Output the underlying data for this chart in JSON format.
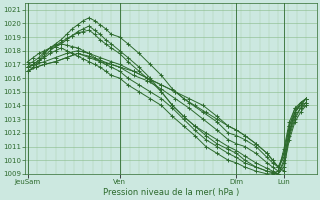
{
  "xlabel": "Pression niveau de la mer( hPa )",
  "bg_color": "#cce8e0",
  "plot_bg_color": "#cce8e0",
  "line_color": "#2d6a2d",
  "grid_major_color": "#88bb88",
  "grid_minor_color": "#aaccaa",
  "ylim": [
    1009,
    1021.5
  ],
  "yticks": [
    1009,
    1010,
    1011,
    1012,
    1013,
    1014,
    1015,
    1016,
    1017,
    1018,
    1019,
    1020,
    1021
  ],
  "xtick_labels": [
    "JeuSam",
    "Ven",
    "Dim",
    "Lun"
  ],
  "xtick_positions": [
    0.0,
    0.33,
    0.75,
    0.92
  ],
  "series": [
    {
      "x": [
        0.0,
        0.02,
        0.04,
        0.06,
        0.08,
        0.1,
        0.12,
        0.14,
        0.16,
        0.18,
        0.2,
        0.22,
        0.24,
        0.26,
        0.28,
        0.3,
        0.33,
        0.36,
        0.4,
        0.44,
        0.48,
        0.52,
        0.56,
        0.6,
        0.64,
        0.68,
        0.72,
        0.75,
        0.78,
        0.82,
        0.86,
        0.88,
        0.9,
        0.92,
        0.94,
        0.96,
        0.98,
        1.0
      ],
      "y": [
        1016.8,
        1017.0,
        1017.3,
        1017.8,
        1018.2,
        1018.5,
        1018.8,
        1019.2,
        1019.6,
        1019.9,
        1020.2,
        1020.4,
        1020.2,
        1019.9,
        1019.6,
        1019.2,
        1019.0,
        1018.5,
        1017.8,
        1017.0,
        1016.2,
        1015.2,
        1014.5,
        1014.0,
        1013.5,
        1013.0,
        1012.5,
        1012.2,
        1011.8,
        1011.2,
        1010.5,
        1010.0,
        1009.5,
        1009.2,
        1012.0,
        1013.5,
        1014.2,
        1014.5
      ]
    },
    {
      "x": [
        0.0,
        0.02,
        0.04,
        0.06,
        0.08,
        0.1,
        0.12,
        0.14,
        0.16,
        0.18,
        0.2,
        0.22,
        0.24,
        0.26,
        0.28,
        0.3,
        0.33,
        0.36,
        0.4,
        0.44,
        0.48,
        0.52,
        0.56,
        0.6,
        0.64,
        0.68,
        0.72,
        0.75,
        0.78,
        0.82,
        0.86,
        0.88,
        0.9,
        0.92,
        0.94,
        0.96,
        0.98,
        1.0
      ],
      "y": [
        1016.5,
        1016.8,
        1017.2,
        1017.6,
        1018.0,
        1018.3,
        1018.5,
        1018.8,
        1019.1,
        1019.4,
        1019.6,
        1019.8,
        1019.5,
        1019.2,
        1018.8,
        1018.5,
        1018.0,
        1017.5,
        1016.8,
        1016.0,
        1015.0,
        1014.0,
        1013.2,
        1012.5,
        1012.0,
        1011.5,
        1011.0,
        1010.7,
        1010.3,
        1009.8,
        1009.4,
        1009.2,
        1009.0,
        1009.5,
        1011.5,
        1012.8,
        1013.5,
        1014.0
      ]
    },
    {
      "x": [
        0.0,
        0.02,
        0.04,
        0.06,
        0.08,
        0.1,
        0.12,
        0.14,
        0.16,
        0.18,
        0.2,
        0.22,
        0.24,
        0.26,
        0.28,
        0.3,
        0.33,
        0.36,
        0.4,
        0.44,
        0.48,
        0.52,
        0.56,
        0.6,
        0.64,
        0.68,
        0.72,
        0.75,
        0.78,
        0.82,
        0.86,
        0.88,
        0.9,
        0.92,
        0.94,
        0.96,
        0.98,
        1.0
      ],
      "y": [
        1017.0,
        1017.2,
        1017.5,
        1017.9,
        1018.2,
        1018.4,
        1018.6,
        1018.9,
        1019.1,
        1019.3,
        1019.4,
        1019.5,
        1019.2,
        1018.8,
        1018.5,
        1018.2,
        1017.8,
        1017.2,
        1016.5,
        1015.8,
        1015.0,
        1014.0,
        1013.2,
        1012.5,
        1011.8,
        1011.2,
        1010.8,
        1010.5,
        1010.0,
        1009.5,
        1009.2,
        1009.1,
        1009.0,
        1009.8,
        1011.8,
        1013.0,
        1013.8,
        1014.2
      ]
    },
    {
      "x": [
        0.0,
        0.02,
        0.04,
        0.06,
        0.08,
        0.1,
        0.12,
        0.14,
        0.16,
        0.18,
        0.2,
        0.22,
        0.24,
        0.26,
        0.28,
        0.3,
        0.33,
        0.36,
        0.4,
        0.44,
        0.48,
        0.52,
        0.56,
        0.6,
        0.64,
        0.68,
        0.72,
        0.75,
        0.78,
        0.82,
        0.86,
        0.88,
        0.9,
        0.92,
        0.94,
        0.96,
        0.98,
        1.0
      ],
      "y": [
        1017.2,
        1017.5,
        1017.8,
        1018.0,
        1018.2,
        1018.3,
        1018.5,
        1018.4,
        1018.3,
        1018.2,
        1018.0,
        1017.8,
        1017.5,
        1017.2,
        1017.0,
        1016.8,
        1016.5,
        1016.0,
        1015.5,
        1015.0,
        1014.5,
        1013.8,
        1013.0,
        1012.2,
        1011.5,
        1011.0,
        1010.5,
        1010.2,
        1009.8,
        1009.5,
        1009.2,
        1009.1,
        1009.0,
        1010.0,
        1012.2,
        1013.5,
        1014.0,
        1014.5
      ]
    },
    {
      "x": [
        0.0,
        0.02,
        0.04,
        0.06,
        0.08,
        0.1,
        0.12,
        0.14,
        0.16,
        0.18,
        0.2,
        0.22,
        0.24,
        0.26,
        0.28,
        0.3,
        0.33,
        0.36,
        0.4,
        0.44,
        0.48,
        0.52,
        0.56,
        0.6,
        0.64,
        0.68,
        0.72,
        0.75,
        0.78,
        0.82,
        0.86,
        0.88,
        0.9,
        0.92,
        0.94,
        0.96,
        0.98,
        1.0
      ],
      "y": [
        1016.8,
        1017.0,
        1017.3,
        1017.5,
        1017.8,
        1018.0,
        1018.2,
        1018.0,
        1017.8,
        1017.6,
        1017.4,
        1017.2,
        1017.0,
        1016.8,
        1016.5,
        1016.2,
        1016.0,
        1015.5,
        1015.0,
        1014.5,
        1014.0,
        1013.2,
        1012.5,
        1011.8,
        1011.0,
        1010.5,
        1010.0,
        1009.8,
        1009.5,
        1009.2,
        1009.0,
        1009.0,
        1009.2,
        1010.5,
        1012.5,
        1013.8,
        1014.0,
        1014.2
      ]
    },
    {
      "x": [
        0.0,
        0.03,
        0.06,
        0.1,
        0.14,
        0.18,
        0.22,
        0.26,
        0.3,
        0.33,
        0.38,
        0.43,
        0.48,
        0.53,
        0.58,
        0.63,
        0.68,
        0.72,
        0.75,
        0.78,
        0.82,
        0.86,
        0.88,
        0.9,
        0.92,
        0.94,
        0.96,
        0.98,
        1.0
      ],
      "y": [
        1016.5,
        1016.8,
        1017.0,
        1017.2,
        1017.5,
        1017.8,
        1017.6,
        1017.3,
        1017.0,
        1016.8,
        1016.5,
        1016.0,
        1015.5,
        1015.0,
        1014.5,
        1014.0,
        1013.2,
        1012.5,
        1012.2,
        1011.8,
        1011.2,
        1010.5,
        1010.0,
        1009.5,
        1010.2,
        1012.0,
        1013.2,
        1013.8,
        1014.0
      ]
    },
    {
      "x": [
        0.0,
        0.03,
        0.06,
        0.1,
        0.14,
        0.18,
        0.22,
        0.26,
        0.3,
        0.33,
        0.38,
        0.43,
        0.48,
        0.53,
        0.58,
        0.63,
        0.68,
        0.72,
        0.75,
        0.78,
        0.82,
        0.86,
        0.88,
        0.9,
        0.92,
        0.94,
        0.96,
        0.98,
        1.0
      ],
      "y": [
        1016.8,
        1017.0,
        1017.2,
        1017.5,
        1017.8,
        1018.0,
        1017.8,
        1017.5,
        1017.2,
        1017.0,
        1016.5,
        1016.0,
        1015.5,
        1015.0,
        1014.2,
        1013.5,
        1012.8,
        1012.0,
        1011.8,
        1011.5,
        1011.0,
        1010.2,
        1009.8,
        1009.5,
        1010.5,
        1012.5,
        1013.5,
        1014.0,
        1014.5
      ]
    },
    {
      "x": [
        0.0,
        0.03,
        0.06,
        0.1,
        0.14,
        0.18,
        0.22,
        0.26,
        0.3,
        0.33,
        0.38,
        0.43,
        0.48,
        0.53,
        0.58,
        0.63,
        0.68,
        0.72,
        0.75,
        0.78,
        0.82,
        0.86,
        0.88,
        0.9,
        0.92,
        0.94,
        0.96,
        0.98,
        1.0
      ],
      "y": [
        1016.5,
        1016.8,
        1017.0,
        1017.2,
        1017.5,
        1017.8,
        1017.5,
        1017.2,
        1017.0,
        1016.8,
        1016.2,
        1015.8,
        1015.2,
        1014.5,
        1013.8,
        1013.0,
        1012.2,
        1011.5,
        1011.2,
        1011.0,
        1010.5,
        1009.8,
        1009.5,
        1009.2,
        1010.8,
        1012.8,
        1013.8,
        1014.2,
        1014.5
      ]
    }
  ]
}
